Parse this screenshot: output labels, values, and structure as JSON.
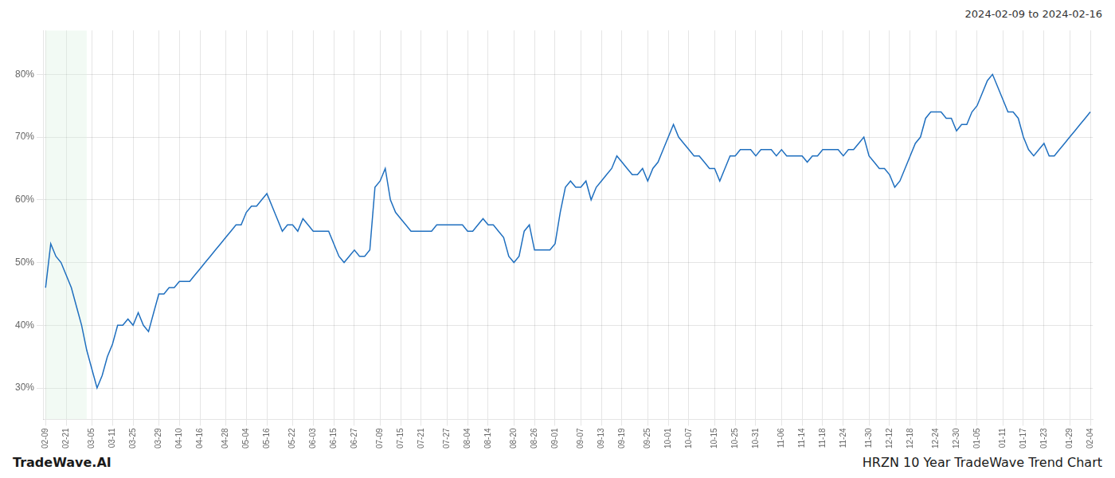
{
  "chart_data": {
    "type": "line",
    "title": "HRZN 10 Year TradeWave Trend Chart",
    "subtitle": "2024-02-09 to 2024-02-16",
    "annotations": [
      "TradeWave.AI"
    ],
    "color": "#1f6fbf",
    "grid": true,
    "highlight": {
      "x_start": 0,
      "x_end": 8,
      "color": "#d4edda"
    },
    "ylim": [
      25,
      87
    ],
    "yticks": [
      {
        "value": 30,
        "label": "30%"
      },
      {
        "value": 40,
        "label": "40%"
      },
      {
        "value": 50,
        "label": "50%"
      },
      {
        "value": 60,
        "label": "60%"
      },
      {
        "value": 70,
        "label": "70%"
      },
      {
        "value": 80,
        "label": "80%"
      }
    ],
    "categories": [
      "02-09",
      null,
      null,
      null,
      "02-21",
      null,
      null,
      null,
      null,
      "03-05",
      null,
      null,
      null,
      "03-11",
      null,
      null,
      null,
      "03-25",
      null,
      null,
      null,
      null,
      "03-29",
      null,
      null,
      null,
      "04-10",
      null,
      null,
      null,
      "04-16",
      null,
      null,
      null,
      null,
      "04-28",
      null,
      null,
      null,
      "05-04",
      null,
      null,
      null,
      "05-16",
      null,
      null,
      null,
      null,
      "05-22",
      null,
      null,
      null,
      "06-03",
      null,
      null,
      null,
      "06-15",
      null,
      null,
      null,
      "06-27",
      null,
      null,
      null,
      null,
      "07-09",
      null,
      null,
      null,
      "07-15",
      null,
      null,
      null,
      "07-21",
      null,
      null,
      null,
      null,
      "07-27",
      null,
      null,
      null,
      "08-04",
      null,
      null,
      null,
      "08-14",
      null,
      null,
      null,
      null,
      "08-20",
      null,
      null,
      null,
      "08-26",
      null,
      null,
      null,
      "09-01",
      null,
      null,
      null,
      null,
      "09-07",
      null,
      null,
      null,
      "09-13",
      null,
      null,
      null,
      "09-19",
      null,
      null,
      null,
      null,
      "09-25",
      null,
      null,
      null,
      "10-01",
      null,
      null,
      null,
      "10-07",
      null,
      null,
      null,
      null,
      "10-15",
      null,
      null,
      null,
      "10-25",
      null,
      null,
      null,
      "10-31",
      null,
      null,
      null,
      null,
      "11-06",
      null,
      null,
      null,
      "11-14",
      null,
      null,
      null,
      "11-18",
      null,
      null,
      null,
      "11-24",
      null,
      null,
      null,
      null,
      "11-30",
      null,
      null,
      null,
      "12-12",
      null,
      null,
      null,
      "12-18",
      null,
      null,
      null,
      null,
      "12-24",
      null,
      null,
      null,
      "12-30",
      null,
      null,
      null,
      "01-05",
      null,
      null,
      null,
      null,
      "01-11",
      null,
      null,
      null,
      "01-17",
      null,
      null,
      null,
      "01-23",
      null,
      null,
      null,
      null,
      "01-29",
      null,
      null,
      null,
      "02-04"
    ],
    "values": [
      46,
      53,
      51,
      50,
      48,
      46,
      43,
      40,
      36,
      33,
      30,
      32,
      35,
      37,
      40,
      40,
      41,
      40,
      42,
      40,
      39,
      42,
      45,
      45,
      46,
      46,
      47,
      47,
      47,
      48,
      49,
      50,
      51,
      52,
      53,
      54,
      55,
      56,
      56,
      58,
      59,
      59,
      60,
      61,
      59,
      57,
      55,
      56,
      56,
      55,
      57,
      56,
      55,
      55,
      55,
      55,
      53,
      51,
      50,
      51,
      52,
      51,
      51,
      52,
      62,
      63,
      65,
      60,
      58,
      57,
      56,
      55,
      55,
      55,
      55,
      55,
      56,
      56,
      56,
      56,
      56,
      56,
      55,
      55,
      56,
      57,
      56,
      56,
      55,
      54,
      51,
      50,
      51,
      55,
      56,
      52,
      52,
      52,
      52,
      53,
      58,
      62,
      63,
      62,
      62,
      63,
      60,
      62,
      63,
      64,
      65,
      67,
      66,
      65,
      64,
      64,
      65,
      63,
      65,
      66,
      68,
      70,
      72,
      70,
      69,
      68,
      67,
      67,
      66,
      65,
      65,
      63,
      65,
      67,
      67,
      68,
      68,
      68,
      67,
      68,
      68,
      68,
      67,
      68,
      67,
      67,
      67,
      67,
      66,
      67,
      67,
      68,
      68,
      68,
      68,
      67,
      68,
      68,
      69,
      70,
      67,
      66,
      65,
      65,
      64,
      62,
      63,
      65,
      67,
      69,
      70,
      73,
      74,
      74,
      74,
      73,
      73,
      71,
      72,
      72,
      74,
      75,
      77,
      79,
      80,
      78,
      76,
      74,
      74,
      73,
      70,
      68,
      67,
      68,
      69,
      67,
      67,
      68,
      69,
      70,
      71,
      72,
      73,
      74
    ]
  }
}
